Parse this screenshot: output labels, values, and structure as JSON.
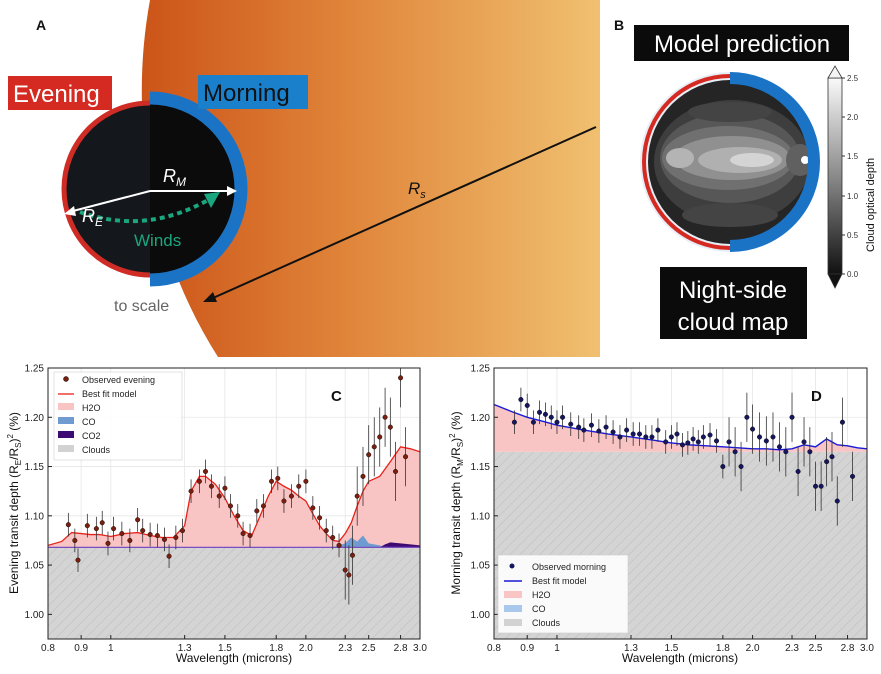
{
  "panel_a": {
    "letter": "A",
    "evening": "Evening",
    "morning": "Morning",
    "rm_main": "R",
    "rm_sub": "M",
    "re_main": "R",
    "re_sub": "E",
    "rs_main": "R",
    "rs_sub": "s",
    "winds": "Winds",
    "scale": "to scale"
  },
  "panel_b": {
    "letter": "B",
    "title": "Model prediction",
    "sub1": "Night-side",
    "sub2": "cloud map",
    "cbar_label": "Cloud optical depth",
    "cbar_ticks": [
      "2.5",
      "2.0",
      "1.5",
      "1.0",
      "0.5",
      "0.0"
    ]
  },
  "chart_data": [
    {
      "type": "line",
      "panel": "C",
      "ylabel_main": "Evening transit depth (R",
      "ylabel_sub1": "E",
      "ylabel_mid": "/R",
      "ylabel_sub2": "S",
      "ylabel_end": ")",
      "ylabel_sup": "2",
      "ylabel_tail": " (%)",
      "xlabel": "Wavelength (microns)",
      "xscale": "log",
      "xlim": [
        0.8,
        3.0
      ],
      "ylim": [
        0.975,
        1.25
      ],
      "xticks": [
        "0.8",
        "0.9",
        "1",
        "1.3",
        "1.5",
        "1.8",
        "2.0",
        "2.3",
        "2.5",
        "2.8",
        "3.0"
      ],
      "yticks": [
        "1.00",
        "1.05",
        "1.10",
        "1.15",
        "1.20",
        "1.25"
      ],
      "legend": [
        "Observed evening",
        "Best fit model",
        "H2O",
        "CO",
        "CO2",
        "Clouds"
      ],
      "colors": {
        "model": "#e8221a",
        "h2o": "#f9c4c4",
        "co": "#6f9bd0",
        "co2": "#3d0a73",
        "clouds": "#d2d2d2",
        "points": "#7a1f10"
      },
      "cloud_level": 1.068,
      "model": [
        [
          0.8,
          1.07
        ],
        [
          0.84,
          1.074
        ],
        [
          0.87,
          1.083
        ],
        [
          0.9,
          1.082
        ],
        [
          0.93,
          1.081
        ],
        [
          0.96,
          1.081
        ],
        [
          1.0,
          1.079
        ],
        [
          1.05,
          1.082
        ],
        [
          1.1,
          1.083
        ],
        [
          1.15,
          1.08
        ],
        [
          1.2,
          1.078
        ],
        [
          1.25,
          1.078
        ],
        [
          1.3,
          1.09
        ],
        [
          1.33,
          1.125
        ],
        [
          1.37,
          1.14
        ],
        [
          1.4,
          1.14
        ],
        [
          1.45,
          1.132
        ],
        [
          1.5,
          1.118
        ],
        [
          1.55,
          1.1
        ],
        [
          1.6,
          1.085
        ],
        [
          1.65,
          1.08
        ],
        [
          1.7,
          1.1
        ],
        [
          1.75,
          1.12
        ],
        [
          1.8,
          1.135
        ],
        [
          1.85,
          1.13
        ],
        [
          1.9,
          1.126
        ],
        [
          1.95,
          1.12
        ],
        [
          2.0,
          1.115
        ],
        [
          2.05,
          1.102
        ],
        [
          2.1,
          1.09
        ],
        [
          2.15,
          1.082
        ],
        [
          2.2,
          1.075
        ],
        [
          2.25,
          1.074
        ],
        [
          2.3,
          1.082
        ],
        [
          2.35,
          1.093
        ],
        [
          2.4,
          1.11
        ],
        [
          2.45,
          1.125
        ],
        [
          2.5,
          1.135
        ],
        [
          2.6,
          1.14
        ],
        [
          2.7,
          1.155
        ],
        [
          2.8,
          1.17
        ],
        [
          2.9,
          1.168
        ],
        [
          3.0,
          1.165
        ]
      ],
      "observed": [
        [
          0.86,
          1.091
        ],
        [
          0.88,
          1.075
        ],
        [
          0.89,
          1.055
        ],
        [
          0.92,
          1.09
        ],
        [
          0.95,
          1.087
        ],
        [
          0.97,
          1.093
        ],
        [
          0.99,
          1.072
        ],
        [
          1.01,
          1.087
        ],
        [
          1.04,
          1.082
        ],
        [
          1.07,
          1.075
        ],
        [
          1.1,
          1.096
        ],
        [
          1.12,
          1.085
        ],
        [
          1.15,
          1.081
        ],
        [
          1.18,
          1.08
        ],
        [
          1.21,
          1.076
        ],
        [
          1.23,
          1.059
        ],
        [
          1.26,
          1.078
        ],
        [
          1.29,
          1.085
        ],
        [
          1.33,
          1.125
        ],
        [
          1.37,
          1.135
        ],
        [
          1.4,
          1.145
        ],
        [
          1.43,
          1.13
        ],
        [
          1.47,
          1.12
        ],
        [
          1.5,
          1.128
        ],
        [
          1.53,
          1.11
        ],
        [
          1.57,
          1.1
        ],
        [
          1.6,
          1.082
        ],
        [
          1.64,
          1.08
        ],
        [
          1.68,
          1.105
        ],
        [
          1.72,
          1.11
        ],
        [
          1.77,
          1.135
        ],
        [
          1.81,
          1.138
        ],
        [
          1.85,
          1.115
        ],
        [
          1.9,
          1.12
        ],
        [
          1.95,
          1.13
        ],
        [
          2.0,
          1.135
        ],
        [
          2.05,
          1.108
        ],
        [
          2.1,
          1.098
        ],
        [
          2.15,
          1.085
        ],
        [
          2.2,
          1.078
        ],
        [
          2.25,
          1.07
        ],
        [
          2.3,
          1.045
        ],
        [
          2.33,
          1.04
        ],
        [
          2.36,
          1.06
        ],
        [
          2.4,
          1.12
        ],
        [
          2.45,
          1.14
        ],
        [
          2.5,
          1.162
        ],
        [
          2.55,
          1.17
        ],
        [
          2.6,
          1.18
        ],
        [
          2.65,
          1.2
        ],
        [
          2.7,
          1.19
        ],
        [
          2.75,
          1.145
        ],
        [
          2.8,
          1.24
        ],
        [
          2.85,
          1.16
        ]
      ]
    },
    {
      "type": "line",
      "panel": "D",
      "ylabel_main": "Morning transit depth (R",
      "ylabel_sub1": "M",
      "ylabel_mid": "/R",
      "ylabel_sub2": "S",
      "ylabel_end": ")",
      "ylabel_sup": "2",
      "ylabel_tail": " (%)",
      "xlabel": "Wavelength (microns)",
      "xscale": "log",
      "xlim": [
        0.8,
        3.0
      ],
      "ylim": [
        0.975,
        1.25
      ],
      "xticks": [
        "0.8",
        "0.9",
        "1",
        "1.3",
        "1.5",
        "1.8",
        "2.0",
        "2.3",
        "2.5",
        "2.8",
        "3.0"
      ],
      "yticks": [
        "1.00",
        "1.05",
        "1.10",
        "1.15",
        "1.20",
        "1.25"
      ],
      "legend": [
        "Observed morning",
        "Best fit model",
        "H2O",
        "CO",
        "Clouds"
      ],
      "colors": {
        "model": "#1a1ad6",
        "h2o": "#f9c4c4",
        "co": "#aac8ec",
        "clouds": "#d2d2d2",
        "points": "#16165e"
      },
      "cloud_level": 1.165,
      "model": [
        [
          0.8,
          1.213
        ],
        [
          0.85,
          1.206
        ],
        [
          0.9,
          1.2
        ],
        [
          0.95,
          1.196
        ],
        [
          1.0,
          1.192
        ],
        [
          1.1,
          1.187
        ],
        [
          1.2,
          1.183
        ],
        [
          1.3,
          1.18
        ],
        [
          1.4,
          1.177
        ],
        [
          1.5,
          1.174
        ],
        [
          1.6,
          1.172
        ],
        [
          1.7,
          1.171
        ],
        [
          1.8,
          1.17
        ],
        [
          1.9,
          1.169
        ],
        [
          2.0,
          1.168
        ],
        [
          2.1,
          1.168
        ],
        [
          2.2,
          1.167
        ],
        [
          2.3,
          1.168
        ],
        [
          2.4,
          1.172
        ],
        [
          2.5,
          1.17
        ],
        [
          2.6,
          1.178
        ],
        [
          2.7,
          1.172
        ],
        [
          2.8,
          1.171
        ],
        [
          2.9,
          1.169
        ],
        [
          3.0,
          1.168
        ]
      ],
      "observed": [
        [
          0.86,
          1.195
        ],
        [
          0.88,
          1.218
        ],
        [
          0.9,
          1.212
        ],
        [
          0.92,
          1.195
        ],
        [
          0.94,
          1.205
        ],
        [
          0.96,
          1.203
        ],
        [
          0.98,
          1.2
        ],
        [
          1.0,
          1.195
        ],
        [
          1.02,
          1.2
        ],
        [
          1.05,
          1.193
        ],
        [
          1.08,
          1.19
        ],
        [
          1.1,
          1.187
        ],
        [
          1.13,
          1.192
        ],
        [
          1.16,
          1.186
        ],
        [
          1.19,
          1.19
        ],
        [
          1.22,
          1.185
        ],
        [
          1.25,
          1.18
        ],
        [
          1.28,
          1.187
        ],
        [
          1.31,
          1.183
        ],
        [
          1.34,
          1.183
        ],
        [
          1.37,
          1.18
        ],
        [
          1.4,
          1.18
        ],
        [
          1.43,
          1.187
        ],
        [
          1.47,
          1.175
        ],
        [
          1.5,
          1.18
        ],
        [
          1.53,
          1.183
        ],
        [
          1.56,
          1.172
        ],
        [
          1.59,
          1.174
        ],
        [
          1.62,
          1.178
        ],
        [
          1.65,
          1.175
        ],
        [
          1.68,
          1.18
        ],
        [
          1.72,
          1.182
        ],
        [
          1.76,
          1.176
        ],
        [
          1.8,
          1.15
        ],
        [
          1.84,
          1.175
        ],
        [
          1.88,
          1.165
        ],
        [
          1.92,
          1.15
        ],
        [
          1.96,
          1.2
        ],
        [
          2.0,
          1.188
        ],
        [
          2.05,
          1.18
        ],
        [
          2.1,
          1.176
        ],
        [
          2.15,
          1.18
        ],
        [
          2.2,
          1.17
        ],
        [
          2.25,
          1.165
        ],
        [
          2.3,
          1.2
        ],
        [
          2.35,
          1.145
        ],
        [
          2.4,
          1.175
        ],
        [
          2.45,
          1.165
        ],
        [
          2.5,
          1.13
        ],
        [
          2.55,
          1.13
        ],
        [
          2.6,
          1.155
        ],
        [
          2.65,
          1.16
        ],
        [
          2.7,
          1.115
        ],
        [
          2.75,
          1.195
        ],
        [
          2.85,
          1.14
        ]
      ]
    }
  ]
}
